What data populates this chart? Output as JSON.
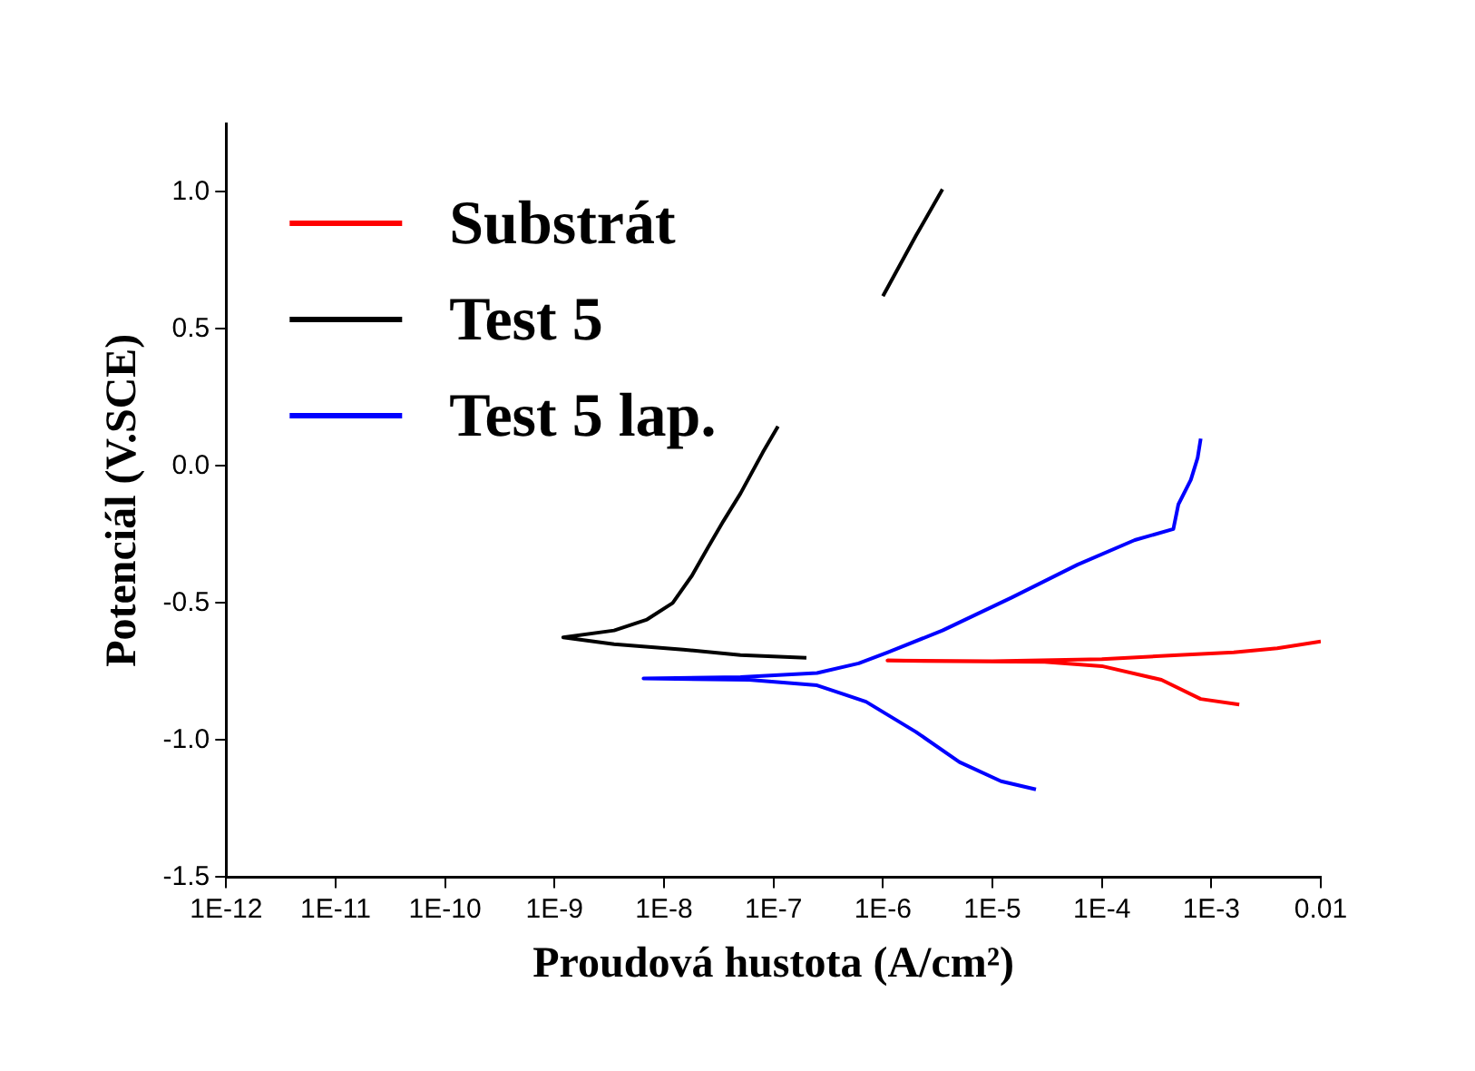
{
  "chart_data": {
    "type": "line",
    "xlabel": "Proudová hustota (A/cm²)",
    "ylabel": "Potenciál (V.SCE)",
    "log": "x",
    "xlim": [
      1e-12,
      0.01
    ],
    "xticks": [
      {
        "value": 1e-12,
        "label": "1E-12"
      },
      {
        "value": 1e-11,
        "label": "1E-11"
      },
      {
        "value": 1e-10,
        "label": "1E-10"
      },
      {
        "value": 1e-09,
        "label": "1E-9"
      },
      {
        "value": 1e-08,
        "label": "1E-8"
      },
      {
        "value": 1e-07,
        "label": "1E-7"
      },
      {
        "value": 1e-06,
        "label": "1E-6"
      },
      {
        "value": 1e-05,
        "label": "1E-5"
      },
      {
        "value": 0.0001,
        "label": "1E-4"
      },
      {
        "value": 0.001,
        "label": "1E-3"
      },
      0.01
    ],
    "ylim": [
      -1.5,
      1.25
    ],
    "yticks": [
      {
        "value": -1.5,
        "label": "-1.5"
      },
      {
        "value": -1,
        "label": "-1.0"
      },
      {
        "value": -0.5,
        "label": "-0.5"
      },
      {
        "value": 0,
        "label": "0.0"
      },
      {
        "value": 0.5,
        "label": "0.5"
      },
      {
        "value": 1,
        "label": "1.0"
      }
    ],
    "grid": false,
    "legend": "top left",
    "marker": "none",
    "line_style": "solid",
    "series": [
      {
        "name": "Substrát",
        "color": "#ff0000",
        "x": [
          0.0018,
          0.0008,
          0.00035,
          0.0001,
          3e-05,
          1.1e-06,
          1e-05,
          0.0001,
          0.0005,
          0.0016,
          0.004,
          0.01
        ],
        "values": [
          -0.87,
          -0.85,
          -0.78,
          -0.73,
          -0.715,
          -0.71,
          -0.712,
          -0.705,
          -0.69,
          -0.68,
          -0.665,
          -0.64
        ]
      },
      {
        "name": "Test 5",
        "color": "#000000",
        "x": [
          1e-06,
          2e-06,
          3.5e-06,
          null,
          1.1e-07,
          8e-08,
          5e-08,
          3.5e-08,
          2.5e-08,
          1.8e-08,
          1.2e-08,
          7e-09,
          3.5e-09,
          1.2e-09,
          3.5e-09,
          1.5e-08,
          5e-08,
          2e-07
        ],
        "values": [
          0.62,
          0.84,
          1.01,
          null,
          0.145,
          0.05,
          -0.1,
          -0.2,
          -0.3,
          -0.4,
          -0.5,
          -0.56,
          -0.6,
          -0.625,
          -0.65,
          -0.67,
          -0.69,
          -0.7
        ]
      },
      {
        "name": "Test 5 lap.",
        "color": "#0000ff",
        "x": [
          2.5e-05,
          1.2e-05,
          5e-06,
          2e-06,
          7e-07,
          2.5e-07,
          6e-08,
          6.5e-09,
          5e-08,
          2.5e-07,
          6e-07,
          1.1e-06,
          3.5e-06,
          1.5e-05,
          6e-05,
          0.0002,
          0.00045,
          0.0005,
          0.00065,
          0.00075,
          0.0008
        ],
        "values": [
          -1.18,
          -1.15,
          -1.08,
          -0.97,
          -0.86,
          -0.8,
          -0.78,
          -0.775,
          -0.77,
          -0.755,
          -0.72,
          -0.68,
          -0.6,
          -0.48,
          -0.36,
          -0.27,
          -0.23,
          -0.14,
          -0.05,
          0.03,
          0.1
        ]
      }
    ]
  }
}
